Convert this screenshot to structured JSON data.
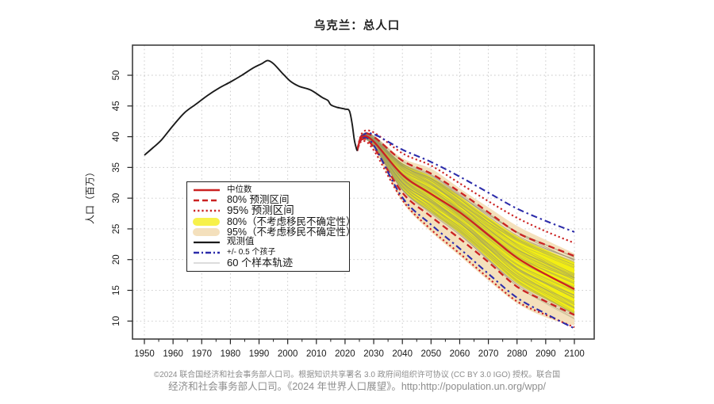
{
  "chart_data": {
    "type": "line",
    "title": "乌克兰：总人口",
    "ylabel": "人口（百万）",
    "xlabel": "",
    "x_range": [
      1950,
      2100
    ],
    "y_range": [
      10,
      50
    ],
    "grid": "dotted",
    "x_ticks": [
      1950,
      1960,
      1970,
      1980,
      1990,
      2000,
      2010,
      2020,
      2030,
      2040,
      2050,
      2060,
      2070,
      2080,
      2090,
      2100
    ],
    "y_ticks": [
      10,
      15,
      20,
      25,
      30,
      35,
      40,
      45,
      50
    ],
    "observed": {
      "name": "观测值",
      "years": [
        1950,
        1953,
        1956,
        1960,
        1964,
        1968,
        1972,
        1976,
        1980,
        1984,
        1988,
        1991,
        1993,
        1995,
        1998,
        2001,
        2004,
        2008,
        2012,
        2014,
        2015,
        2017,
        2020,
        2021.5,
        2022.5,
        2023.3,
        2024.2
      ],
      "values": [
        37.0,
        38.2,
        39.5,
        41.8,
        43.9,
        45.3,
        46.7,
        47.9,
        48.9,
        50.0,
        51.2,
        51.9,
        52.4,
        51.9,
        50.4,
        49.0,
        48.2,
        47.6,
        46.4,
        45.9,
        45.2,
        44.8,
        44.5,
        44.2,
        42.0,
        39.3,
        37.7
      ]
    },
    "projection": {
      "years": [
        2024.2,
        2026,
        2030,
        2040,
        2050,
        2060,
        2070,
        2080,
        2090,
        2100
      ],
      "median": [
        37.7,
        40.0,
        39.2,
        33.8,
        30.7,
        27.7,
        24.0,
        20.3,
        17.6,
        15.2
      ],
      "pi80_upper": [
        37.7,
        40.3,
        40.0,
        36.1,
        34.0,
        31.0,
        27.7,
        24.4,
        22.4,
        20.6
      ],
      "pi80_lower": [
        37.7,
        39.6,
        38.3,
        30.9,
        27.0,
        23.4,
        19.6,
        15.6,
        13.2,
        11.0
      ],
      "pi95_upper": [
        37.7,
        40.6,
        40.7,
        37.3,
        35.3,
        32.4,
        29.5,
        26.8,
        24.6,
        22.7
      ],
      "pi95_lower": [
        37.7,
        39.3,
        37.8,
        29.7,
        24.9,
        21.0,
        17.0,
        13.2,
        11.0,
        9.0
      ],
      "child_pm05_upper": [
        37.7,
        40.1,
        40.4,
        37.9,
        35.9,
        33.5,
        30.9,
        28.3,
        26.3,
        24.5
      ],
      "child_pm05_lower": [
        37.7,
        39.8,
        38.6,
        30.1,
        25.7,
        21.8,
        17.7,
        13.8,
        11.2,
        8.8
      ],
      "nomig80_upper": [
        37.7,
        40.1,
        39.8,
        35.7,
        33.5,
        30.3,
        26.9,
        23.8,
        21.6,
        19.6
      ],
      "nomig80_lower": [
        37.7,
        39.7,
        38.6,
        31.4,
        27.7,
        24.3,
        20.2,
        16.2,
        13.6,
        11.2
      ],
      "nomig95_upper": [
        37.7,
        40.2,
        40.2,
        36.5,
        34.8,
        31.6,
        28.5,
        25.5,
        23.2,
        21.0
      ],
      "nomig95_lower": [
        37.7,
        39.5,
        38.1,
        29.4,
        24.5,
        20.6,
        16.6,
        12.9,
        10.6,
        9.3
      ],
      "sample_trajectories_count": 60
    }
  },
  "legend": {
    "items": [
      {
        "label": "中位数",
        "swatch": "line-red-solid"
      },
      {
        "label": "80% 预测区间",
        "swatch": "line-red-dashed"
      },
      {
        "label": "95% 预测区间",
        "swatch": "line-red-dotted"
      },
      {
        "label": "80%（不考虑移民不确定性）",
        "swatch": "fill-yellow"
      },
      {
        "label": "95%（不考虑移民不确定性）",
        "swatch": "fill-beige"
      },
      {
        "label": "观测值",
        "swatch": "line-black-solid"
      },
      {
        "label": "+/- 0.5 个孩子",
        "swatch": "line-blue-dashdot"
      },
      {
        "label": "60 个样本轨迹",
        "swatch": "line-gray-thin"
      }
    ]
  },
  "footer": {
    "line1": "©2024 联合国经济和社会事务部人口司。根据知识共享署名 3.0 政府间组织许可协议 (CC BY 3.0 IGO) 授权。联合国",
    "line2": "经济和社会事务部人口司。《2024 年世界人口展望》。http:http://population.un.org/wpp/"
  },
  "colors": {
    "red": "#cb2222",
    "blue": "#2c2caa",
    "yellow": "#f3ef12",
    "beige": "#f4e0bc",
    "observed": "#1a1a1a",
    "trajectory": "#97946e",
    "grid": "#c8c8c8",
    "frame": "#3d3d3d",
    "tick_text": "#1a1a1a"
  }
}
